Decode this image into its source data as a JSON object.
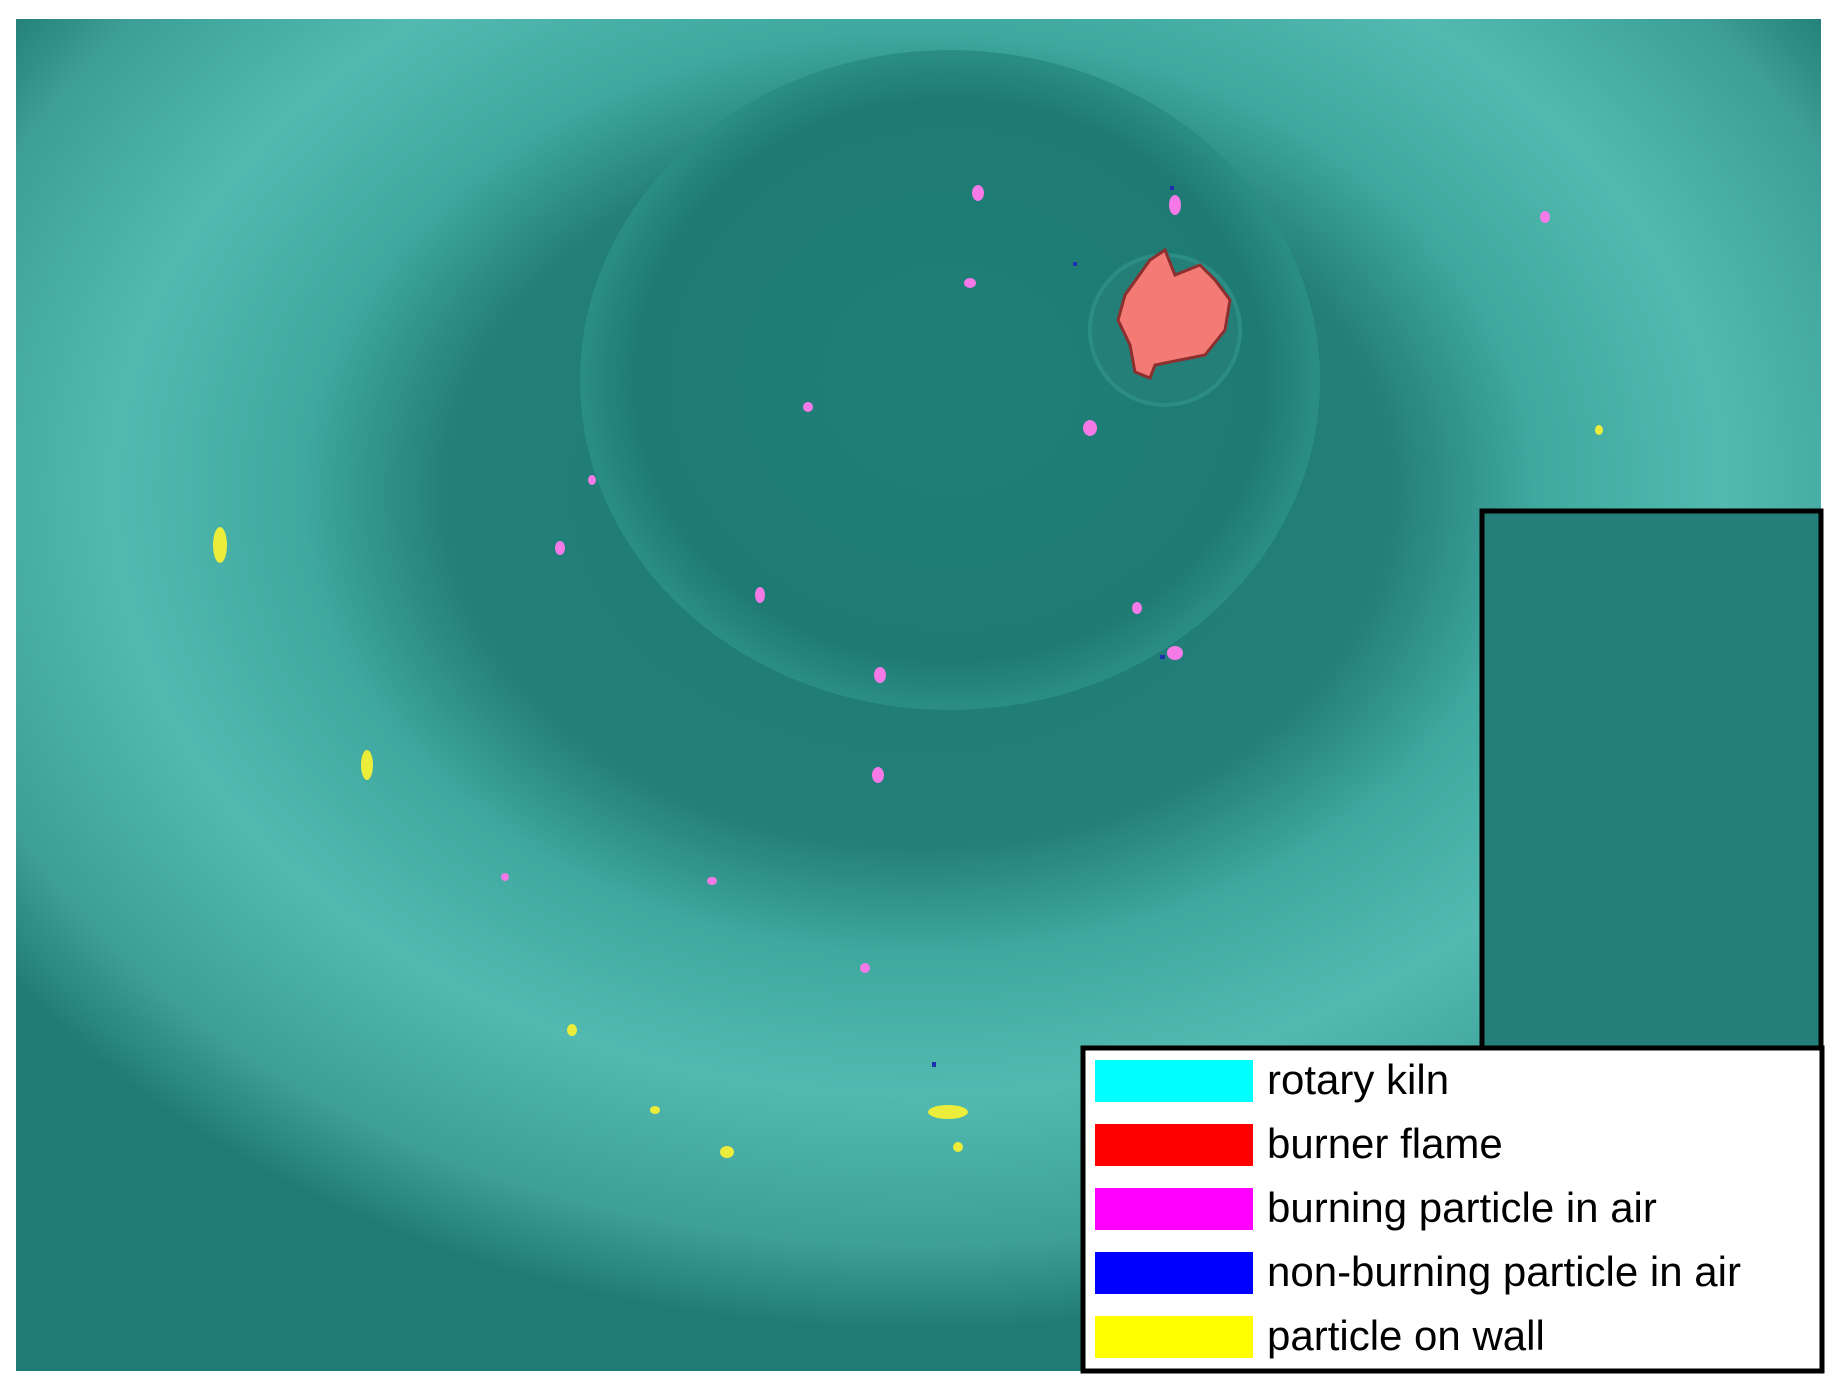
{
  "legend": {
    "items": [
      {
        "label": "rotary kiln",
        "color": "#00ffff"
      },
      {
        "label": "burner flame",
        "color": "#ff0000"
      },
      {
        "label": "burning particle in air",
        "color": "#ff00ff"
      },
      {
        "label": "non-burning particle in air",
        "color": "#0000ff"
      },
      {
        "label": "particle on wall",
        "color": "#ffff00"
      }
    ]
  }
}
